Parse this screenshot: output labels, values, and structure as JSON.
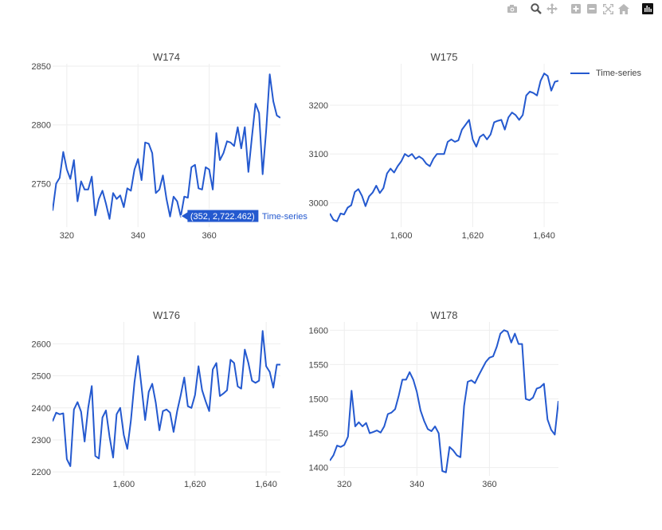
{
  "legend": {
    "series_name": "Time-series"
  },
  "colors": {
    "line": "#2459cf",
    "grid": "#eeeeee",
    "tick_text": "#444444",
    "title_text": "#444444",
    "modebar_icon": "#b8b8b8",
    "modebar_active": "#555555"
  },
  "modebar": {
    "buttons": [
      {
        "name": "camera-icon",
        "group": 0
      },
      {
        "name": "zoom-icon",
        "group": 1,
        "active": true
      },
      {
        "name": "pan-icon",
        "group": 1
      },
      {
        "name": "zoom-in-icon",
        "group": 2
      },
      {
        "name": "zoom-out-icon",
        "group": 2
      },
      {
        "name": "autoscale-icon",
        "group": 2
      },
      {
        "name": "reset-axes-icon",
        "group": 2
      },
      {
        "name": "plotly-logo-icon",
        "group": 3
      }
    ]
  },
  "hover": {
    "label": "(352, 2,722.462)",
    "series": "Time-series",
    "x": 352,
    "y": 2722.462
  },
  "chart_data": [
    {
      "type": "line",
      "title": "W174",
      "xlim": [
        316,
        380
      ],
      "ylim": [
        2713,
        2852
      ],
      "xticks": [
        320,
        340,
        360
      ],
      "yticks": [
        2750,
        2800,
        2850
      ],
      "series": [
        {
          "name": "Time-series",
          "x": [
            316,
            317,
            318,
            319,
            320,
            321,
            322,
            323,
            324,
            325,
            326,
            327,
            328,
            329,
            330,
            331,
            332,
            333,
            334,
            335,
            336,
            337,
            338,
            339,
            340,
            341,
            342,
            343,
            344,
            345,
            346,
            347,
            348,
            349,
            350,
            351,
            352,
            353,
            354,
            355,
            356,
            357,
            358,
            359,
            360,
            361,
            362,
            363,
            364,
            365,
            366,
            367,
            368,
            369,
            370,
            371,
            372,
            373,
            374,
            375,
            376,
            377,
            378,
            379,
            380
          ],
          "values": [
            2727,
            2750,
            2755,
            2777,
            2762,
            2754,
            2770,
            2735,
            2752,
            2745,
            2745,
            2756,
            2723,
            2737,
            2744,
            2733,
            2720,
            2742,
            2737,
            2740,
            2730,
            2746,
            2744,
            2762,
            2771,
            2753,
            2785,
            2784,
            2776,
            2742,
            2745,
            2757,
            2737,
            2722,
            2739,
            2735,
            2722,
            2739,
            2738,
            2764,
            2766,
            2746,
            2745,
            2764,
            2762,
            2745,
            2793,
            2770,
            2776,
            2786,
            2785,
            2782,
            2798,
            2780,
            2798,
            2760,
            2790,
            2818,
            2810,
            2758,
            2795,
            2843,
            2820,
            2808,
            2806
          ]
        }
      ]
    },
    {
      "type": "line",
      "title": "W175",
      "xlim": [
        1580,
        1644
      ],
      "ylim": [
        2950,
        3285
      ],
      "xticks": [
        1600,
        1620,
        1640
      ],
      "yticks": [
        3000,
        3100,
        3200
      ],
      "series": [
        {
          "name": "Time-series",
          "x": [
            1580,
            1581,
            1582,
            1583,
            1584,
            1585,
            1586,
            1587,
            1588,
            1589,
            1590,
            1591,
            1592,
            1593,
            1594,
            1595,
            1596,
            1597,
            1598,
            1599,
            1600,
            1601,
            1602,
            1603,
            1604,
            1605,
            1606,
            1607,
            1608,
            1609,
            1610,
            1611,
            1612,
            1613,
            1614,
            1615,
            1616,
            1617,
            1618,
            1619,
            1620,
            1621,
            1622,
            1623,
            1624,
            1625,
            1626,
            1627,
            1628,
            1629,
            1630,
            1631,
            1632,
            1633,
            1634,
            1635,
            1636,
            1637,
            1638,
            1639,
            1640,
            1641,
            1642,
            1643,
            1644
          ],
          "values": [
            2978,
            2965,
            2962,
            2978,
            2976,
            2990,
            2995,
            3022,
            3028,
            3014,
            2993,
            3013,
            3021,
            3035,
            3020,
            3030,
            3060,
            3070,
            3062,
            3075,
            3085,
            3100,
            3095,
            3100,
            3090,
            3095,
            3090,
            3080,
            3075,
            3090,
            3100,
            3100,
            3100,
            3125,
            3130,
            3125,
            3128,
            3150,
            3160,
            3170,
            3130,
            3115,
            3135,
            3140,
            3130,
            3140,
            3165,
            3168,
            3170,
            3150,
            3175,
            3185,
            3180,
            3170,
            3180,
            3220,
            3228,
            3225,
            3220,
            3250,
            3265,
            3260,
            3230,
            3248,
            3250
          ]
        }
      ]
    },
    {
      "type": "line",
      "title": "W176",
      "xlim": [
        1580,
        1644
      ],
      "ylim": [
        2188,
        2668
      ],
      "xticks": [
        1600,
        1620,
        1640
      ],
      "yticks": [
        2200,
        2300,
        2400,
        2500,
        2600
      ],
      "series": [
        {
          "name": "Time-series",
          "x": [
            1580,
            1581,
            1582,
            1583,
            1584,
            1585,
            1586,
            1587,
            1588,
            1589,
            1590,
            1591,
            1592,
            1593,
            1594,
            1595,
            1596,
            1597,
            1598,
            1599,
            1600,
            1601,
            1602,
            1603,
            1604,
            1605,
            1606,
            1607,
            1608,
            1609,
            1610,
            1611,
            1612,
            1613,
            1614,
            1615,
            1616,
            1617,
            1618,
            1619,
            1620,
            1621,
            1622,
            1623,
            1624,
            1625,
            1626,
            1627,
            1628,
            1629,
            1630,
            1631,
            1632,
            1633,
            1634,
            1635,
            1636,
            1637,
            1638,
            1639,
            1640,
            1641,
            1642,
            1643,
            1644
          ],
          "values": [
            2358,
            2385,
            2380,
            2383,
            2240,
            2218,
            2395,
            2418,
            2388,
            2295,
            2400,
            2468,
            2250,
            2242,
            2370,
            2392,
            2310,
            2245,
            2380,
            2400,
            2315,
            2272,
            2360,
            2480,
            2562,
            2465,
            2362,
            2450,
            2475,
            2415,
            2330,
            2390,
            2395,
            2385,
            2325,
            2390,
            2440,
            2495,
            2405,
            2400,
            2440,
            2530,
            2455,
            2420,
            2390,
            2520,
            2540,
            2437,
            2445,
            2455,
            2550,
            2540,
            2467,
            2460,
            2582,
            2540,
            2485,
            2478,
            2485,
            2640,
            2530,
            2512,
            2463,
            2535,
            2535
          ]
        }
      ]
    },
    {
      "type": "line",
      "title": "W178",
      "xlim": [
        316,
        379
      ],
      "ylim": [
        1388,
        1612
      ],
      "xticks": [
        320,
        340,
        360
      ],
      "yticks": [
        1400,
        1450,
        1500,
        1550,
        1600
      ],
      "series": [
        {
          "name": "Time-series",
          "x": [
            316,
            317,
            318,
            319,
            320,
            321,
            322,
            323,
            324,
            325,
            326,
            327,
            328,
            329,
            330,
            331,
            332,
            333,
            334,
            335,
            336,
            337,
            338,
            339,
            340,
            341,
            342,
            343,
            344,
            345,
            346,
            347,
            348,
            349,
            350,
            351,
            352,
            353,
            354,
            355,
            356,
            357,
            358,
            359,
            360,
            361,
            362,
            363,
            364,
            365,
            366,
            367,
            368,
            369,
            370,
            371,
            372,
            373,
            374,
            375,
            376,
            377,
            378,
            379
          ],
          "values": [
            1410,
            1418,
            1432,
            1430,
            1433,
            1445,
            1512,
            1460,
            1466,
            1460,
            1465,
            1450,
            1452,
            1454,
            1451,
            1460,
            1478,
            1480,
            1485,
            1505,
            1528,
            1528,
            1539,
            1528,
            1510,
            1483,
            1468,
            1456,
            1453,
            1460,
            1450,
            1395,
            1393,
            1430,
            1425,
            1418,
            1415,
            1490,
            1525,
            1527,
            1523,
            1534,
            1544,
            1554,
            1560,
            1562,
            1576,
            1595,
            1600,
            1598,
            1582,
            1595,
            1580,
            1580,
            1500,
            1498,
            1502,
            1515,
            1517,
            1522,
            1470,
            1455,
            1448,
            1497
          ]
        }
      ]
    }
  ]
}
